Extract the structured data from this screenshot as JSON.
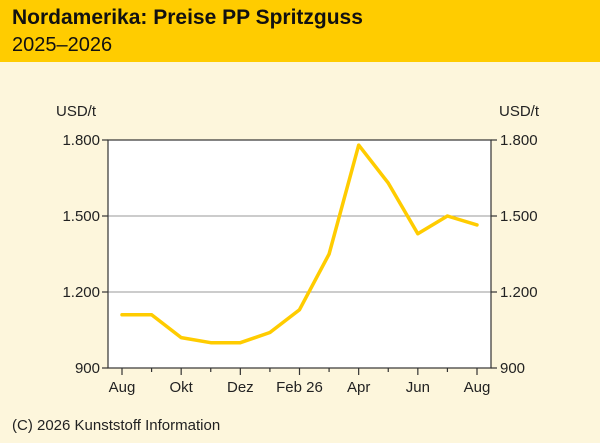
{
  "header": {
    "title": "Nordamerika: Preise PP Spritzguss",
    "subtitle": "2025–2026"
  },
  "footer": {
    "copyright": "(C) 2026 Kunststoff Information"
  },
  "colors": {
    "header_bg": "#ffcc00",
    "page_bg": "#fdf6dc",
    "line": "#ffcc00",
    "grid": "#999999",
    "axis": "#333333"
  },
  "chart_data": {
    "type": "line",
    "title": "Nordamerika: Preise PP Spritzguss",
    "subtitle": "2025–2026",
    "ylabel_left": "USD/t",
    "ylabel_right": "USD/t",
    "ylim": [
      900,
      1800
    ],
    "yticks": [
      900,
      1200,
      1500,
      1800
    ],
    "ytick_labels": [
      "900",
      "1.200",
      "1.500",
      "1.800"
    ],
    "xtick_labels": [
      "Aug",
      "Okt",
      "Dez",
      "Feb 26",
      "Apr",
      "Jun",
      "Aug"
    ],
    "x": [
      "2025-08",
      "2025-09",
      "2025-10",
      "2025-11",
      "2025-12",
      "2026-01",
      "2026-02",
      "2026-03",
      "2026-04",
      "2026-05",
      "2026-06",
      "2026-07",
      "2026-08"
    ],
    "values": [
      1110,
      1110,
      1020,
      1000,
      1000,
      1040,
      1130,
      1350,
      1780,
      1630,
      1430,
      1500,
      1465
    ],
    "grid": "horizontal",
    "legend": "none"
  }
}
